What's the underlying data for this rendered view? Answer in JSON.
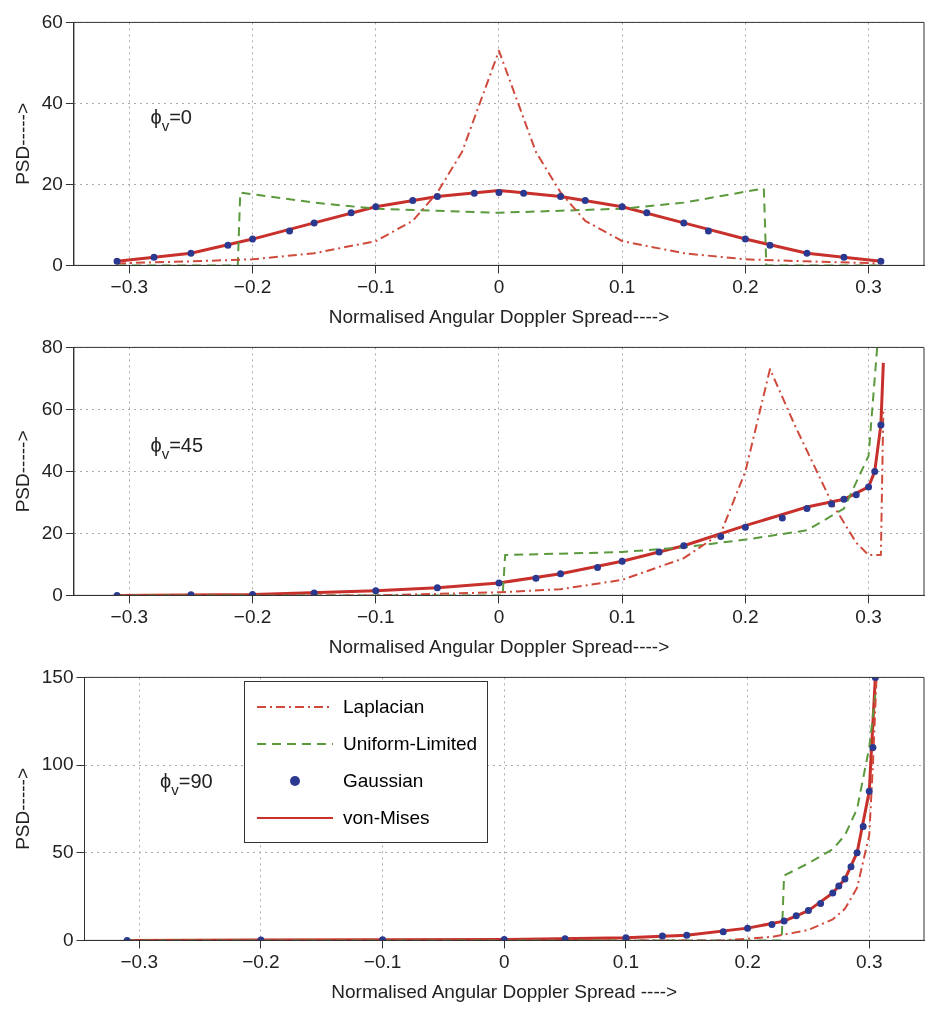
{
  "chart_data": [
    {
      "type": "line",
      "xlabel": "Normalised Angular Doppler Spread---->",
      "ylabel": "PSD----->",
      "annotations": [
        "ϕ$_{v}$=0"
      ],
      "xlim": [
        -0.345,
        0.345
      ],
      "xticks": [
        {
          "value": -0.3,
          "label": "−0.3"
        },
        {
          "value": -0.2,
          "label": "−0.2"
        },
        {
          "value": -0.1,
          "label": "−0.1"
        },
        0,
        0.1,
        0.2,
        0.3
      ],
      "ylim": [
        0,
        60
      ],
      "yticks": [
        0,
        20,
        40,
        60
      ],
      "grid": true,
      "legend": false,
      "series": [
        {
          "type": "line",
          "line_style": "dashdot",
          "color": "#d04a3c",
          "x": [
            -0.31,
            -0.25,
            -0.2,
            -0.15,
            -0.1,
            -0.07,
            -0.05,
            -0.03,
            0,
            0.03,
            0.05,
            0.07,
            0.1,
            0.15,
            0.2,
            0.25,
            0.31
          ],
          "values": [
            0.5,
            1,
            1.5,
            3,
            6,
            11,
            18,
            28,
            53,
            28,
            18,
            11,
            6,
            3,
            1.5,
            1,
            0.5
          ]
        },
        {
          "type": "line",
          "line_style": "dashed",
          "color": "#5b9a3c",
          "x": [
            -0.31,
            -0.212,
            -0.21,
            -0.15,
            -0.1,
            -0.05,
            0,
            0.05,
            0.1,
            0.15,
            0.215,
            0.217,
            0.31
          ],
          "values": [
            0,
            0,
            18,
            15.5,
            14,
            13.5,
            13,
            13.5,
            14,
            15.5,
            19,
            0,
            0
          ]
        },
        {
          "type": "scatter",
          "marker": "circle",
          "color": "#2b3990",
          "x": [
            -0.31,
            -0.28,
            -0.25,
            -0.22,
            -0.2,
            -0.17,
            -0.15,
            -0.12,
            -0.1,
            -0.07,
            -0.05,
            -0.02,
            0,
            0.02,
            0.05,
            0.07,
            0.1,
            0.12,
            0.15,
            0.17,
            0.2,
            0.22,
            0.25,
            0.28,
            0.31
          ],
          "values": [
            1,
            2,
            3,
            5,
            6.5,
            8.5,
            10.5,
            13,
            14.5,
            16,
            17,
            17.8,
            18,
            17.8,
            17,
            16,
            14.5,
            13,
            10.5,
            8.5,
            6.5,
            5,
            3,
            2,
            1
          ]
        },
        {
          "type": "line",
          "line_style": "solid",
          "color": "#c8302c",
          "x": [
            -0.31,
            -0.25,
            -0.2,
            -0.15,
            -0.1,
            -0.05,
            0,
            0.05,
            0.1,
            0.15,
            0.2,
            0.25,
            0.31
          ],
          "values": [
            1,
            3,
            6.5,
            10.5,
            14.5,
            17,
            18.5,
            17,
            14.5,
            10.5,
            6.5,
            3,
            1
          ]
        }
      ]
    },
    {
      "type": "line",
      "xlabel": "Normalised Angular Doppler Spread---->",
      "ylabel": "PSD----->",
      "annotations": [
        "ϕ$_{v}$=45"
      ],
      "xlim": [
        -0.345,
        0.345
      ],
      "xticks": [
        {
          "value": -0.3,
          "label": "−0.3"
        },
        {
          "value": -0.2,
          "label": "−0.2"
        },
        {
          "value": -0.1,
          "label": "−0.1"
        },
        0,
        0.1,
        0.2,
        0.3
      ],
      "ylim": [
        0,
        80
      ],
      "yticks": [
        0,
        20,
        40,
        60,
        80
      ],
      "grid": true,
      "legend": false,
      "series": [
        {
          "type": "line",
          "line_style": "dashdot",
          "color": "#d04a3c",
          "x": [
            -0.31,
            -0.1,
            0,
            0.05,
            0.1,
            0.15,
            0.18,
            0.2,
            0.22,
            0.24,
            0.27,
            0.29,
            0.3,
            0.31,
            0.312
          ],
          "values": [
            0,
            0,
            1,
            2,
            5,
            12,
            20,
            40,
            73,
            55,
            30,
            17,
            13,
            13,
            60
          ]
        },
        {
          "type": "line",
          "line_style": "dashed",
          "color": "#5b9a3c",
          "x": [
            -0.31,
            0.003,
            0.005,
            0.1,
            0.15,
            0.2,
            0.25,
            0.28,
            0.3,
            0.307
          ],
          "values": [
            0,
            0,
            13,
            14,
            15.5,
            18,
            21,
            28,
            45,
            80
          ]
        },
        {
          "type": "scatter",
          "marker": "circle",
          "color": "#2b3990",
          "x": [
            -0.31,
            -0.25,
            -0.2,
            -0.15,
            -0.1,
            -0.05,
            0,
            0.03,
            0.05,
            0.08,
            0.1,
            0.13,
            0.15,
            0.18,
            0.2,
            0.23,
            0.25,
            0.27,
            0.28,
            0.29,
            0.3,
            0.305,
            0.31
          ],
          "values": [
            0,
            0.2,
            0.3,
            0.8,
            1.5,
            2.5,
            4,
            5.5,
            7,
            9,
            11,
            14,
            16,
            19,
            22,
            25,
            28,
            29.5,
            31,
            32.5,
            35,
            40,
            55
          ]
        },
        {
          "type": "line",
          "line_style": "solid",
          "color": "#c8302c",
          "x": [
            -0.31,
            -0.2,
            -0.1,
            -0.05,
            0,
            0.05,
            0.1,
            0.15,
            0.2,
            0.25,
            0.28,
            0.3,
            0.305,
            0.31,
            0.312
          ],
          "values": [
            0,
            0.3,
            1.5,
            2.5,
            4,
            7,
            11,
            16,
            22.5,
            28.5,
            31,
            35,
            40,
            55,
            75
          ]
        }
      ]
    },
    {
      "type": "line",
      "xlabel": "Normalised Angular Doppler Spread ---->",
      "ylabel": "PSD----->",
      "annotations": [
        "ϕ$_{v}$=90"
      ],
      "xlim": [
        -0.345,
        0.345
      ],
      "xticks": [
        {
          "value": -0.3,
          "label": "−0.3"
        },
        {
          "value": -0.2,
          "label": "−0.2"
        },
        {
          "value": -0.1,
          "label": "−0.1"
        },
        0,
        0.1,
        0.2,
        0.3
      ],
      "ylim": [
        0,
        150
      ],
      "yticks": [
        0,
        50,
        100,
        150
      ],
      "grid": true,
      "legend": "top left",
      "series": [
        {
          "name": "Laplacian",
          "type": "line",
          "line_style": "dashdot",
          "color": "#d04a3c",
          "x": [
            -0.31,
            0.18,
            0.22,
            0.25,
            0.27,
            0.28,
            0.29,
            0.3,
            0.303,
            0.306
          ],
          "values": [
            0,
            0,
            2,
            6,
            12,
            18,
            30,
            60,
            100,
            150
          ]
        },
        {
          "name": "Uniform-Limited",
          "type": "line",
          "line_style": "dashed",
          "color": "#5b9a3c",
          "x": [
            -0.31,
            0.228,
            0.23,
            0.25,
            0.27,
            0.28,
            0.29,
            0.3,
            0.305
          ],
          "values": [
            0,
            0,
            37,
            44,
            52,
            60,
            75,
            110,
            140
          ]
        },
        {
          "name": "Gaussian",
          "type": "scatter",
          "marker": "circle",
          "color": "#2b3990",
          "x": [
            -0.31,
            -0.2,
            -0.1,
            0,
            0.05,
            0.1,
            0.13,
            0.15,
            0.18,
            0.2,
            0.22,
            0.23,
            0.24,
            0.25,
            0.26,
            0.27,
            0.275,
            0.28,
            0.285,
            0.29,
            0.295,
            0.3,
            0.303,
            0.305
          ],
          "values": [
            0,
            0.2,
            0.3,
            0.5,
            1,
            1.5,
            2.5,
            3,
            5,
            7,
            9,
            11,
            14,
            17,
            21,
            27,
            31,
            35,
            42,
            50,
            65,
            85,
            110,
            150
          ]
        },
        {
          "name": "von-Mises",
          "type": "line",
          "line_style": "solid",
          "color": "#c8302c",
          "x": [
            -0.31,
            0,
            0.1,
            0.15,
            0.2,
            0.23,
            0.25,
            0.27,
            0.28,
            0.29,
            0.3,
            0.305
          ],
          "values": [
            0,
            0.5,
            1.5,
            3,
            7,
            11,
            17,
            27,
            35,
            50,
            85,
            150
          ]
        }
      ]
    }
  ]
}
